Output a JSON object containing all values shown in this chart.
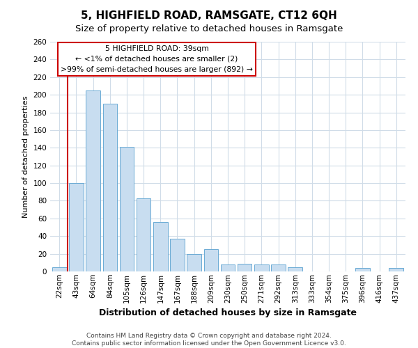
{
  "title": "5, HIGHFIELD ROAD, RAMSGATE, CT12 6QH",
  "subtitle": "Size of property relative to detached houses in Ramsgate",
  "xlabel": "Distribution of detached houses by size in Ramsgate",
  "ylabel": "Number of detached properties",
  "bar_labels": [
    "22sqm",
    "43sqm",
    "64sqm",
    "84sqm",
    "105sqm",
    "126sqm",
    "147sqm",
    "167sqm",
    "188sqm",
    "209sqm",
    "230sqm",
    "250sqm",
    "271sqm",
    "292sqm",
    "313sqm",
    "333sqm",
    "354sqm",
    "375sqm",
    "396sqm",
    "416sqm",
    "437sqm"
  ],
  "bar_values": [
    5,
    100,
    205,
    190,
    141,
    83,
    56,
    37,
    20,
    25,
    8,
    9,
    8,
    8,
    5,
    0,
    0,
    0,
    4,
    0,
    4
  ],
  "bar_color": "#c8ddf0",
  "bar_edgecolor": "#6aaad4",
  "ylim": [
    0,
    260
  ],
  "yticks": [
    0,
    20,
    40,
    60,
    80,
    100,
    120,
    140,
    160,
    180,
    200,
    220,
    240,
    260
  ],
  "annotation_title": "5 HIGHFIELD ROAD: 39sqm",
  "annotation_line1": "← <1% of detached houses are smaller (2)",
  "annotation_line2": ">99% of semi-detached houses are larger (892) →",
  "annotation_box_color": "#ffffff",
  "annotation_box_edgecolor": "#cc0000",
  "vline_color": "#cc0000",
  "footer_line1": "Contains HM Land Registry data © Crown copyright and database right 2024.",
  "footer_line2": "Contains public sector information licensed under the Open Government Licence v3.0.",
  "bg_color": "#ffffff",
  "grid_color": "#d0dce8",
  "title_fontsize": 11,
  "subtitle_fontsize": 9.5,
  "xlabel_fontsize": 9,
  "ylabel_fontsize": 8,
  "tick_fontsize": 7.5,
  "footer_fontsize": 6.5
}
